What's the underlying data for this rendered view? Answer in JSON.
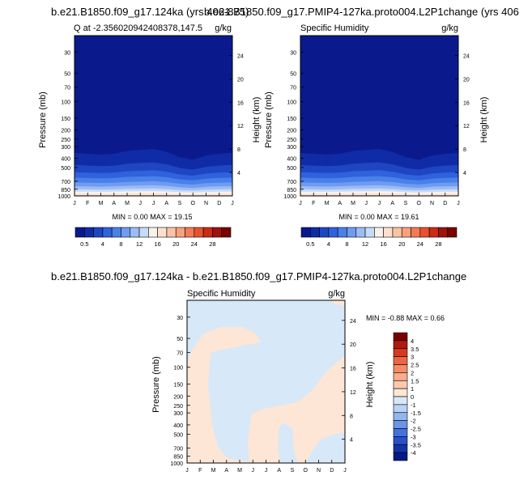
{
  "panels": [
    {
      "title": "b.e21.B1850.f09_g17.124ka (yrs 406-875)",
      "subtitle_left": "Q at -2.356020942408378,147.5",
      "subtitle_right": "g/kg",
      "stats": "MIN =  0.00 MAX = 19.15"
    },
    {
      "title": "b.e21.B1850.f09_g17.PMIP4-127ka.proto004.L2P1change (yrs 406",
      "subtitle_left": "Specific Humidity",
      "subtitle_right": "g/kg",
      "stats": "MIN =  0.00 MAX = 19.61"
    },
    {
      "title": "b.e21.B1850.f09_g17.124ka - b.e21.B1850.f09_g17.PMIP4-127ka.proto004.L2P1change",
      "subtitle_left": "Specific Humidity",
      "subtitle_right": "g/kg",
      "stats": "MIN = -0.88 MAX =   0.66"
    }
  ],
  "axes": {
    "ylabel_left": "Pressure (mb)",
    "ylabel_right": "Height (km)",
    "months": [
      "J",
      "F",
      "M",
      "A",
      "M",
      "J",
      "J",
      "A",
      "S",
      "O",
      "N",
      "D",
      "J"
    ],
    "pressure_ticks": [
      "30",
      "50",
      "70",
      "100",
      "150",
      "200",
      "250",
      "300",
      "400",
      "500",
      "700",
      "850",
      "1000"
    ],
    "pressure_values": [
      30,
      50,
      70,
      100,
      150,
      200,
      250,
      300,
      400,
      500,
      700,
      850,
      1000
    ],
    "height_ticks": [
      "24",
      "20",
      "16",
      "12",
      "8",
      "4"
    ],
    "height_values": [
      24,
      20,
      16,
      12,
      8,
      4
    ]
  },
  "colorbar_abs": {
    "labels": [
      "0.5",
      "4",
      "8",
      "12",
      "16",
      "20",
      "24",
      "28"
    ],
    "colors": [
      "#0a1a8c",
      "#0f2ca6",
      "#1f46c2",
      "#2f62dc",
      "#4a80ea",
      "#6f9cf0",
      "#9bbcf5",
      "#c6dbf8",
      "#f8f2ea",
      "#fde0cf",
      "#fcc2a5",
      "#f9a07d",
      "#f47a55",
      "#e85232",
      "#cc2b15",
      "#a1120a",
      "#7a0000"
    ]
  },
  "colorbar_diff": {
    "labels": [
      "4",
      "3.5",
      "3",
      "2.5",
      "2",
      "1.5",
      "1",
      "0",
      "-1",
      "-1.5",
      "-2",
      "-2.5",
      "-3",
      "-3.5",
      "-4"
    ],
    "colors": [
      "#7a0000",
      "#b01a0c",
      "#d63a1c",
      "#ee6640",
      "#f68c66",
      "#f9ab8a",
      "#fcc9ad",
      "#fde6d5",
      "#d7e8f8",
      "#b8d3f4",
      "#93b6ee",
      "#6b95e6",
      "#4572da",
      "#2850c8",
      "#1233a8",
      "#061a86"
    ]
  },
  "chart_data": [
    {
      "type": "heatmap",
      "title": "b.e21.B1850.f09_g17.124ka (yrs 406-875)",
      "xlabel": "",
      "ylabel": "Pressure (mb)",
      "y2label": "Height (km)",
      "x": [
        "J",
        "F",
        "M",
        "A",
        "M",
        "J",
        "J",
        "A",
        "S",
        "O",
        "N",
        "D",
        "J"
      ],
      "y_scale": "log",
      "ylim": [
        1000,
        20
      ],
      "contour_levels": [
        0.5,
        2,
        4,
        6,
        8,
        10,
        12,
        14,
        16,
        18
      ],
      "min": 0.0,
      "max": 19.15,
      "units": "g/kg"
    },
    {
      "type": "heatmap",
      "title": "b.e21.B1850.f09_g17.PMIP4-127ka.proto004.L2P1change (yrs 406",
      "xlabel": "",
      "ylabel": "Pressure (mb)",
      "y2label": "Height (km)",
      "x": [
        "J",
        "F",
        "M",
        "A",
        "M",
        "J",
        "J",
        "A",
        "S",
        "O",
        "N",
        "D",
        "J"
      ],
      "y_scale": "log",
      "ylim": [
        1000,
        20
      ],
      "contour_levels": [
        0.5,
        2,
        4,
        6,
        8,
        10,
        12,
        14,
        16,
        18
      ],
      "min": 0.0,
      "max": 19.61,
      "units": "g/kg"
    },
    {
      "type": "heatmap",
      "title": "b.e21.B1850.f09_g17.124ka - b.e21.B1850.f09_g17.PMIP4-127ka.proto004.L2P1change",
      "xlabel": "",
      "ylabel": "Pressure (mb)",
      "y2label": "Height (km)",
      "x": [
        "J",
        "F",
        "M",
        "A",
        "M",
        "J",
        "J",
        "A",
        "S",
        "O",
        "N",
        "D",
        "J"
      ],
      "y_scale": "log",
      "ylim": [
        1000,
        20
      ],
      "contour_levels": [
        -1,
        0,
        1
      ],
      "min": -0.88,
      "max": 0.66,
      "units": "g/kg"
    }
  ]
}
